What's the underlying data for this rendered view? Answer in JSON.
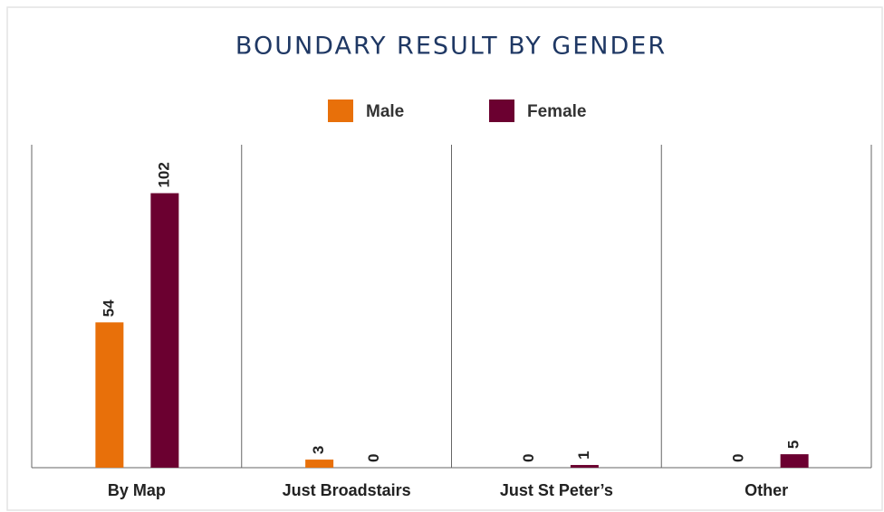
{
  "chart_data": {
    "type": "bar",
    "title": "BOUNDARY RESULT BY GENDER",
    "categories": [
      "By Map",
      "Just Broadstairs",
      "Just St Peter’s",
      "Other"
    ],
    "series": [
      {
        "name": "Male",
        "color": "#e8700a",
        "values": [
          54,
          3,
          0,
          0
        ]
      },
      {
        "name": "Female",
        "color": "#6b0030",
        "values": [
          102,
          0,
          1,
          5
        ]
      }
    ],
    "ylim": [
      0,
      120
    ],
    "legend": "top"
  }
}
